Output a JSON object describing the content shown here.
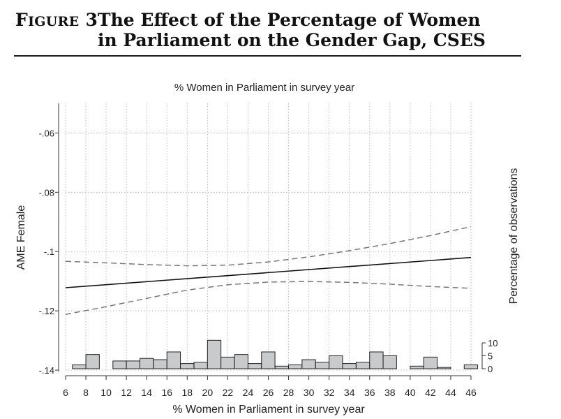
{
  "figure": {
    "label_first": "F",
    "label_rest": "IGURE",
    "label_num": "3",
    "title_line1": "The Effect of the Percentage of Women",
    "title_line2": "in Parliament on the Gender Gap, CSES"
  },
  "chart_data": {
    "type": "line",
    "title": "% Women in Parliament in survey year",
    "xlabel": "% Women in Parliament in survey year",
    "ylabel": "AME Female",
    "y2label": "Percentage of observations",
    "xlim": [
      6,
      46
    ],
    "ylim": [
      -0.14,
      -0.05
    ],
    "xticks": [
      6,
      8,
      10,
      12,
      14,
      16,
      18,
      20,
      22,
      24,
      26,
      28,
      30,
      32,
      34,
      36,
      38,
      40,
      42,
      44,
      46
    ],
    "xtick_labels": [
      "6",
      "8",
      "10",
      "12",
      "14",
      "16",
      "18",
      "20",
      "22",
      "24",
      "26",
      "28",
      "30",
      "32",
      "34",
      "36",
      "38",
      "40",
      "42",
      "44",
      "46"
    ],
    "yticks": [
      -0.14,
      -0.12,
      -0.1,
      -0.08,
      -0.06
    ],
    "ytick_labels": [
      "-.14",
      "-.12",
      "-.1",
      "-.08",
      "-.06"
    ],
    "y2ticks": [
      0,
      5,
      10
    ],
    "y2tick_labels": [
      "0",
      "5",
      "10"
    ],
    "grid": true,
    "series": [
      {
        "name": "",
        "style": "solid",
        "color": "#111111",
        "x": [
          6,
          46
        ],
        "y": [
          -0.1122,
          -0.102
        ]
      },
      {
        "name": "",
        "style": "dashed",
        "color": "#777777",
        "x": [
          6,
          10,
          14,
          18,
          22,
          26,
          30,
          34,
          38,
          42,
          46
        ],
        "y": [
          -0.1033,
          -0.1038,
          -0.1044,
          -0.1048,
          -0.1046,
          -0.1035,
          -0.1018,
          -0.0997,
          -0.0973,
          -0.0946,
          -0.0916
        ]
      },
      {
        "name": "",
        "style": "dashed",
        "color": "#777777",
        "x": [
          6,
          10,
          14,
          18,
          22,
          26,
          30,
          34,
          38,
          42,
          46
        ],
        "y": [
          -0.1212,
          -0.1186,
          -0.1158,
          -0.113,
          -0.1112,
          -0.1103,
          -0.1101,
          -0.1104,
          -0.111,
          -0.1118,
          -0.1124
        ]
      }
    ],
    "histogram": {
      "bin_width": 1.33,
      "bars": [
        {
          "x0": 6.67,
          "value": 1.5
        },
        {
          "x0": 8.0,
          "value": 5.5
        },
        {
          "x0": 10.67,
          "value": 3.0
        },
        {
          "x0": 12.0,
          "value": 3.0
        },
        {
          "x0": 13.33,
          "value": 4.0
        },
        {
          "x0": 14.67,
          "value": 3.5
        },
        {
          "x0": 16.0,
          "value": 6.5
        },
        {
          "x0": 17.33,
          "value": 2.0
        },
        {
          "x0": 18.67,
          "value": 2.5
        },
        {
          "x0": 20.0,
          "value": 11.0
        },
        {
          "x0": 21.33,
          "value": 4.5
        },
        {
          "x0": 22.67,
          "value": 5.5
        },
        {
          "x0": 24.0,
          "value": 2.0
        },
        {
          "x0": 25.33,
          "value": 6.5
        },
        {
          "x0": 26.67,
          "value": 1.0
        },
        {
          "x0": 28.0,
          "value": 1.5
        },
        {
          "x0": 29.33,
          "value": 3.5
        },
        {
          "x0": 30.67,
          "value": 2.5
        },
        {
          "x0": 32.0,
          "value": 5.0
        },
        {
          "x0": 33.33,
          "value": 2.0
        },
        {
          "x0": 34.67,
          "value": 2.5
        },
        {
          "x0": 36.0,
          "value": 6.5
        },
        {
          "x0": 37.33,
          "value": 5.0
        },
        {
          "x0": 40.0,
          "value": 1.0
        },
        {
          "x0": 41.33,
          "value": 4.5
        },
        {
          "x0": 42.67,
          "value": 0.5
        },
        {
          "x0": 45.33,
          "value": 1.5
        }
      ]
    }
  }
}
